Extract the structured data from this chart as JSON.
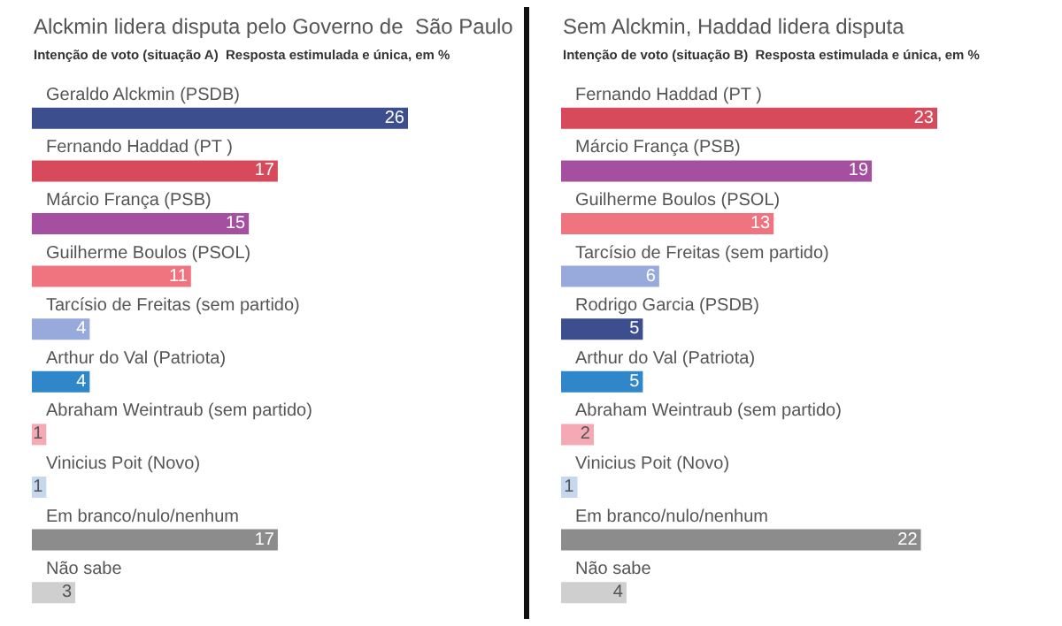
{
  "chart_data": [
    {
      "type": "bar",
      "orientation": "horizontal",
      "title": "Alckmin lidera disputa pelo Governo de  São Paulo",
      "subtitle": "Intenção de voto (situação A)  Resposta estimulada e única, em %",
      "categories": [
        "Geraldo Alckmin (PSDB)",
        "Fernando Haddad (PT )",
        "Márcio França (PSB)",
        "Guilherme Boulos (PSOL)",
        "Tarcísio de Freitas (sem partido)",
        "Arthur do Val (Patriota)",
        "Abraham Weintraub (sem partido)",
        "Vinicius Poit (Novo)",
        "Em branco/nulo/nenhum",
        "Não sabe"
      ],
      "values": [
        26,
        17,
        15,
        11,
        4,
        4,
        1,
        1,
        17,
        3
      ],
      "colors": [
        "#3d4e8f",
        "#d64a5c",
        "#a44fa0",
        "#ef7480",
        "#98a9dc",
        "#2f86c9",
        "#f4a9b3",
        "#c5d8ee",
        "#8c8c8c",
        "#cfcfcf"
      ],
      "data_labels": true
    },
    {
      "type": "bar",
      "orientation": "horizontal",
      "title": "Sem Alckmin, Haddad lidera disputa",
      "subtitle": "Intenção de voto (situação B)  Resposta estimulada e única, em %",
      "categories": [
        "Fernando Haddad (PT )",
        "Márcio França (PSB)",
        "Guilherme Boulos (PSOL)",
        "Tarcísio de Freitas (sem partido)",
        "Rodrigo Garcia (PSDB)",
        "Arthur do Val (Patriota)",
        "Abraham Weintraub (sem partido)",
        "Vinicius Poit (Novo)",
        "Em branco/nulo/nenhum",
        "Não sabe"
      ],
      "values": [
        23,
        19,
        13,
        6,
        5,
        5,
        2,
        1,
        22,
        4
      ],
      "colors": [
        "#d64a5c",
        "#a44fa0",
        "#ef7480",
        "#98a9dc",
        "#3d4e8f",
        "#2f86c9",
        "#f4a9b3",
        "#c5d8ee",
        "#8c8c8c",
        "#cfcfcf"
      ],
      "data_labels": true
    }
  ]
}
